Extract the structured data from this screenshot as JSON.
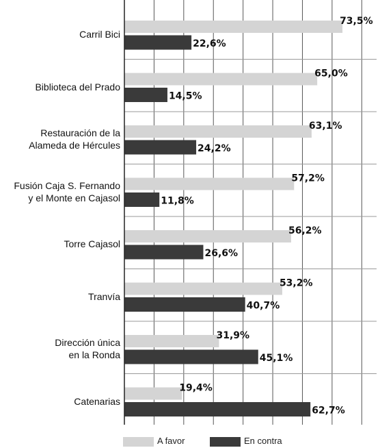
{
  "chart_data": {
    "type": "barh",
    "categories": [
      "Carril Bici",
      "Biblioteca del Prado",
      "Restauración de la\nAlameda de Hércules",
      "Fusión Caja S. Fernando\ny el Monte en Cajasol",
      "Torre Cajasol",
      "Tranvía",
      "Dirección única\nen la Ronda",
      "Catenarias"
    ],
    "series": [
      {
        "name": "A favor",
        "color": "#d4d4d4",
        "values": [
          73.5,
          65.0,
          63.1,
          57.2,
          56.2,
          53.2,
          31.9,
          19.4
        ],
        "value_labels": [
          "73,5%",
          "65,0%",
          "63,1%",
          "57,2%",
          "56,2%",
          "53,2%",
          "31,9%",
          "19,4%"
        ]
      },
      {
        "name": "En contra",
        "color": "#3a3a3a",
        "values": [
          22.6,
          14.5,
          24.2,
          11.8,
          26.6,
          40.7,
          45.1,
          62.7
        ],
        "value_labels": [
          "22,6%",
          "14,5%",
          "24,2%",
          "11,8%",
          "26,6%",
          "40,7%",
          "45,1%",
          "62,7%"
        ]
      }
    ],
    "xlim": [
      0,
      85
    ],
    "xticks": [
      0,
      10,
      20,
      30,
      40,
      50,
      60,
      70,
      80
    ],
    "grid": true
  }
}
